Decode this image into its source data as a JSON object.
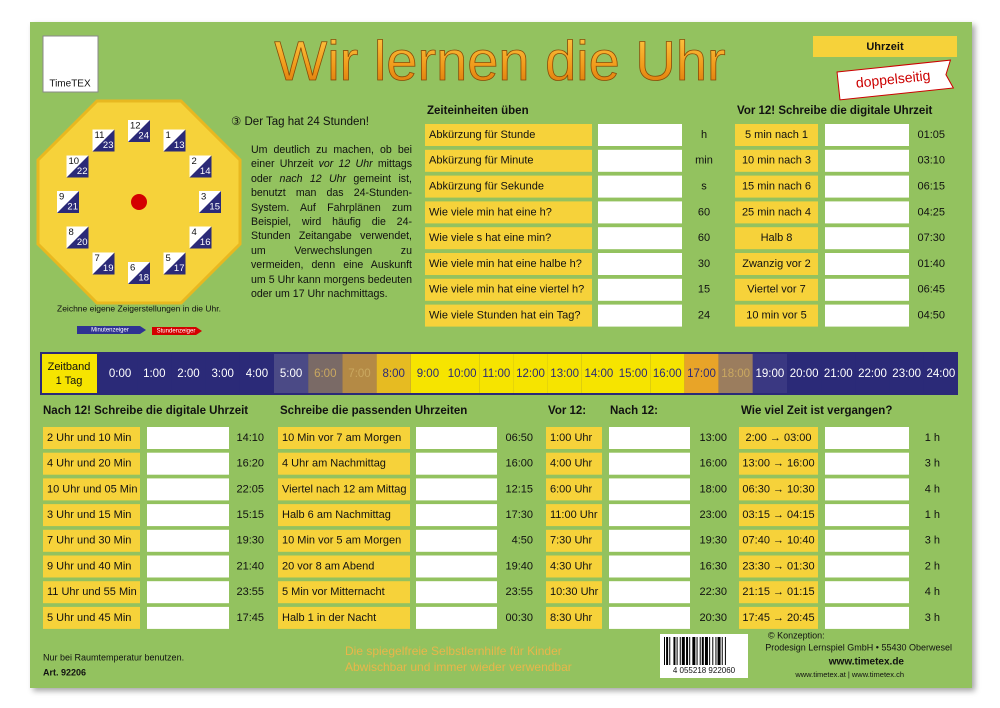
{
  "logo": "TimeTEX",
  "title": "Wir lernen die Uhr",
  "badge": "Uhrzeit",
  "ribbon": "doppelseitig",
  "clock": {
    "numbers": [
      [
        "12",
        "24"
      ],
      [
        "1",
        "13"
      ],
      [
        "2",
        "14"
      ],
      [
        "3",
        "15"
      ],
      [
        "4",
        "16"
      ],
      [
        "5",
        "17"
      ],
      [
        "6",
        "18"
      ],
      [
        "7",
        "19"
      ],
      [
        "8",
        "20"
      ],
      [
        "9",
        "21"
      ],
      [
        "10",
        "22"
      ],
      [
        "11",
        "23"
      ]
    ],
    "caption": "Zeichne eigene Zeigerstellungen in die Uhr.",
    "minute_hand": "Minutenzeiger",
    "hour_hand": "Stundenzeiger"
  },
  "info": {
    "heading": "③ Der Tag hat 24 Stunden!",
    "text_parts": [
      "Um deutlich zu machen, ob bei einer Uhrzeit ",
      "vor 12 Uhr",
      " mittags oder ",
      "nach 12 Uhr",
      " gemeint ist, benutzt man das 24-Stunden-System. Auf Fahrplänen zum Beispiel, wird häufig die 24-Stunden Zeitangabe verwendet, um Verwechslungen zu vermeiden, denn eine Auskunft um 5 Uhr kann morgens bedeuten oder um 17 Uhr nachmittags."
    ]
  },
  "sections": [
    {
      "titles": [
        "Zeiteinheiten üben"
      ],
      "rows": [
        [
          "Abkürzung für Stunde",
          "h"
        ],
        [
          "Abkürzung für Minute",
          "min"
        ],
        [
          "Abkürzung für Sekunde",
          "s"
        ],
        [
          "Wie viele min hat eine h?",
          "60"
        ],
        [
          "Wie viele s hat eine min?",
          "60"
        ],
        [
          "Wie viele min hat eine halbe h?",
          "30"
        ],
        [
          "Wie viele min hat eine viertel h?",
          "15"
        ],
        [
          "Wie viele Stunden hat ein Tag?",
          "24"
        ]
      ]
    },
    {
      "titles": [
        "Vor 12! Schreibe die digitale Uhrzeit"
      ],
      "rows": [
        [
          "5 min nach 1",
          "01:05"
        ],
        [
          "10 min nach 3",
          "03:10"
        ],
        [
          "15 min nach 6",
          "06:15"
        ],
        [
          "25 min nach 4",
          "04:25"
        ],
        [
          "Halb 8",
          "07:30"
        ],
        [
          "Zwanzig vor 2",
          "01:40"
        ],
        [
          "Viertel vor 7",
          "06:45"
        ],
        [
          "10 min vor 5",
          "04:50"
        ]
      ]
    },
    {
      "titles": [
        "Nach 12! Schreibe die digitale Uhrzeit"
      ],
      "rows": [
        [
          "2 Uhr und 10 Min",
          "14:10"
        ],
        [
          "4 Uhr und 20 Min",
          "16:20"
        ],
        [
          "10 Uhr und 05 Min",
          "22:05"
        ],
        [
          "3 Uhr und 15 Min",
          "15:15"
        ],
        [
          "7 Uhr und 30 Min",
          "19:30"
        ],
        [
          "9 Uhr und 40 Min",
          "21:40"
        ],
        [
          "11 Uhr und 55 Min",
          "23:55"
        ],
        [
          "5 Uhr und 45 Min",
          "17:45"
        ]
      ]
    },
    {
      "titles": [
        "Schreibe die passenden Uhrzeiten"
      ],
      "rows": [
        [
          "10 Min vor 7 am Morgen",
          "06:50"
        ],
        [
          "4 Uhr am Nachmittag",
          "16:00"
        ],
        [
          "Viertel nach 12 am Mittag",
          "12:15"
        ],
        [
          "Halb 6 am Nachmittag",
          "17:30"
        ],
        [
          "10 Min vor 5 am Morgen",
          "4:50"
        ],
        [
          "20 vor 8 am Abend",
          "19:40"
        ],
        [
          "5 Min vor Mitternacht",
          "23:55"
        ],
        [
          "Halb 1 in der Nacht",
          "00:30"
        ]
      ]
    },
    {
      "titles": [
        "Vor 12:",
        "Nach 12:"
      ],
      "rows": [
        [
          "1:00 Uhr",
          "13:00"
        ],
        [
          "4:00 Uhr",
          "16:00"
        ],
        [
          "6:00 Uhr",
          "18:00"
        ],
        [
          "11:00 Uhr",
          "23:00"
        ],
        [
          "7:30 Uhr",
          "19:30"
        ],
        [
          "4:30 Uhr",
          "16:30"
        ],
        [
          "10:30 Uhr",
          "22:30"
        ],
        [
          "8:30 Uhr",
          "20:30"
        ]
      ]
    },
    {
      "titles": [
        "Wie viel Zeit ist vergangen?"
      ],
      "rows": [
        [
          "2:00 → 03:00",
          "1 h"
        ],
        [
          "13:00 → 16:00",
          "3 h"
        ],
        [
          "06:30 → 10:30",
          "4 h"
        ],
        [
          "03:15 → 04:15",
          "1 h"
        ],
        [
          "07:40 → 10:40",
          "3 h"
        ],
        [
          "23:30 → 01:30",
          "2 h"
        ],
        [
          "21:15 → 01:15",
          "4 h"
        ],
        [
          "17:45 → 20:45",
          "3 h"
        ]
      ]
    }
  ],
  "timeband": {
    "label": [
      "Zeitband",
      "1 Tag"
    ],
    "hours": [
      "0:00",
      "1:00",
      "2:00",
      "3:00",
      "4:00",
      "5:00",
      "6:00",
      "7:00",
      "8:00",
      "9:00",
      "10:00",
      "11:00",
      "12:00",
      "13:00",
      "14:00",
      "15:00",
      "16:00",
      "17:00",
      "18:00",
      "19:00",
      "20:00",
      "21:00",
      "22:00",
      "23:00",
      "24:00"
    ],
    "colors": [
      "#2b2a78",
      "#2b2a78",
      "#2b2a78",
      "#2b2a78",
      "#2b2a78",
      "#4b4a86",
      "#7a6a66",
      "#b48a45",
      "#e6bb22",
      "#f6e400",
      "#f6e400",
      "#f6e400",
      "#f6e400",
      "#f6e400",
      "#f6e400",
      "#f6e400",
      "#f6e400",
      "#e8a428",
      "#9b7d5e",
      "#3a3882",
      "#2b2a78",
      "#2b2a78",
      "#2b2a78",
      "#2b2a78",
      "#2b2a78"
    ]
  },
  "footer": {
    "note": "Nur bei Raumtemperatur benutzen.",
    "article": "Art. 92206",
    "features": [
      "Die spiegelfreie Selbstlernhilfe für Kinder",
      "Abwischbar und immer wieder verwendbar"
    ],
    "barcode": "4 055218 922060",
    "credits": [
      "© Konzeption:",
      "Prodesign Lernspiel GmbH • 55430 Oberwesel",
      "www.timetex.de",
      "www.timetex.at | www.timetex.ch"
    ]
  }
}
